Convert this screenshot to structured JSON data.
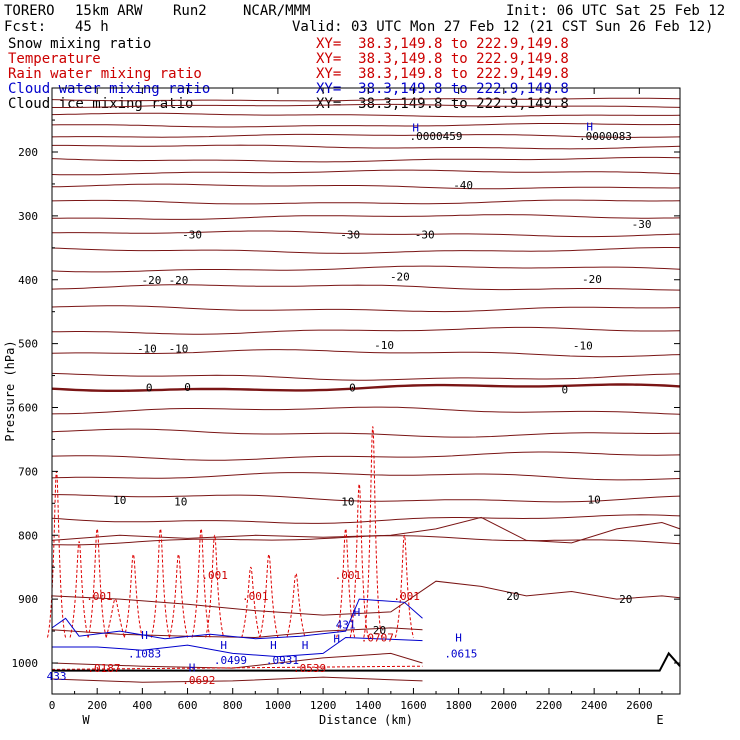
{
  "header": {
    "model": "TORERO",
    "resolution": "15km ARW",
    "run": "Run2",
    "org": "NCAR/MMM",
    "init": "Init: 06 UTC Sat 25 Feb 12",
    "fcst_label": "Fcst:",
    "fcst_value": "45 h",
    "valid": "Valid: 03 UTC Mon 27 Feb 12 (21 CST Sun 26 Feb 12)"
  },
  "fields": [
    {
      "name": "Snow mixing ratio",
      "xy": "XY=  38.3,149.8 to 222.9,149.8",
      "color": "#000000"
    },
    {
      "name": "Temperature",
      "xy": "XY=  38.3,149.8 to 222.9,149.8",
      "color": "#cc0000"
    },
    {
      "name": "Rain water mixing ratio",
      "xy": "XY=  38.3,149.8 to 222.9,149.8",
      "color": "#cc0000"
    },
    {
      "name": "Cloud water mixing ratio",
      "xy": "XY=  38.3,149.8 to 222.9,149.8",
      "color": "#0000cc"
    },
    {
      "name": "Cloud ice mixing ratio",
      "xy": "XY=  38.3,149.8 to 222.9,149.8",
      "color": "#000000"
    }
  ],
  "chart_data": {
    "type": "line",
    "xlabel": "Distance (km)",
    "ylabel": "Pressure (hPa)",
    "xlim": [
      0,
      2780
    ],
    "ylim": [
      1045,
      100
    ],
    "x_ticks": [
      0,
      200,
      400,
      600,
      800,
      1000,
      1200,
      1400,
      1600,
      1800,
      2000,
      2200,
      2400,
      2600
    ],
    "y_ticks": [
      200,
      300,
      400,
      500,
      600,
      700,
      800,
      900,
      1000
    ],
    "left_end_label": "W",
    "right_end_label": "E",
    "temperature_contour_labels": [
      {
        "text": "-40",
        "x": 1820,
        "p": 252
      },
      {
        "text": "-30",
        "x": 620,
        "p": 329
      },
      {
        "text": "-30",
        "x": 1320,
        "p": 329
      },
      {
        "text": "-30",
        "x": 1650,
        "p": 329
      },
      {
        "text": "-30",
        "x": 2610,
        "p": 313
      },
      {
        "text": "-20",
        "x": 440,
        "p": 400
      },
      {
        "text": "-20",
        "x": 560,
        "p": 400
      },
      {
        "text": "-20",
        "x": 1540,
        "p": 395
      },
      {
        "text": "-20",
        "x": 2390,
        "p": 399
      },
      {
        "text": "-10",
        "x": 420,
        "p": 508
      },
      {
        "text": "-10",
        "x": 560,
        "p": 508
      },
      {
        "text": "-10",
        "x": 1470,
        "p": 502
      },
      {
        "text": "-10",
        "x": 2350,
        "p": 503
      },
      {
        "text": "0",
        "x": 430,
        "p": 569
      },
      {
        "text": "0",
        "x": 600,
        "p": 568
      },
      {
        "text": "0",
        "x": 1330,
        "p": 569
      },
      {
        "text": "0",
        "x": 2270,
        "p": 572
      },
      {
        "text": "10",
        "x": 300,
        "p": 745
      },
      {
        "text": "10",
        "x": 570,
        "p": 747
      },
      {
        "text": "10",
        "x": 1310,
        "p": 747
      },
      {
        "text": "10",
        "x": 2400,
        "p": 744
      },
      {
        "text": "20",
        "x": 2040,
        "p": 895
      },
      {
        "text": "20",
        "x": 2540,
        "p": 900
      },
      {
        "text": "20",
        "x": 1450,
        "p": 948
      }
    ],
    "rain_labels": [
      {
        "text": ".001",
        "x": 720,
        "p": 862
      },
      {
        "text": ".001",
        "x": 210,
        "p": 895
      },
      {
        "text": ".001",
        "x": 900,
        "p": 895
      },
      {
        "text": ".001",
        "x": 1310,
        "p": 862
      },
      {
        "text": ".001",
        "x": 1570,
        "p": 895
      },
      {
        "text": ".0187",
        "x": 230,
        "p": 1008
      },
      {
        "text": ".0692",
        "x": 650,
        "p": 1027
      },
      {
        "text": ".0539",
        "x": 1140,
        "p": 1008
      },
      {
        "text": ".0707",
        "x": 1440,
        "p": 960
      }
    ],
    "cloud_water_labels": [
      {
        "text": "433",
        "x": 20,
        "p": 1020
      },
      {
        "text": ".1083",
        "x": 410,
        "p": 985
      },
      {
        "text": ".0499",
        "x": 790,
        "p": 995
      },
      {
        "text": ".0931",
        "x": 1020,
        "p": 995
      },
      {
        "text": ".0615",
        "x": 1810,
        "p": 985
      },
      {
        "text": "431",
        "x": 1300,
        "p": 940
      }
    ],
    "cloud_ice_labels": [
      {
        "text": ".0000459",
        "x": 1700,
        "p": 175
      },
      {
        "text": ".0000083",
        "x": 2450,
        "p": 175
      }
    ],
    "high_markers": [
      {
        "text": "H",
        "x": 1610,
        "p": 162
      },
      {
        "text": "H",
        "x": 2380,
        "p": 160
      },
      {
        "text": "H",
        "x": 410,
        "p": 956
      },
      {
        "text": "H",
        "x": 760,
        "p": 972
      },
      {
        "text": "H",
        "x": 980,
        "p": 972
      },
      {
        "text": "H",
        "x": 1120,
        "p": 972
      },
      {
        "text": "H",
        "x": 620,
        "p": 1007
      },
      {
        "text": "H",
        "x": 1350,
        "p": 920
      },
      {
        "text": "H",
        "x": 1800,
        "p": 960
      },
      {
        "text": "H",
        "x": 1260,
        "p": 962
      }
    ]
  }
}
